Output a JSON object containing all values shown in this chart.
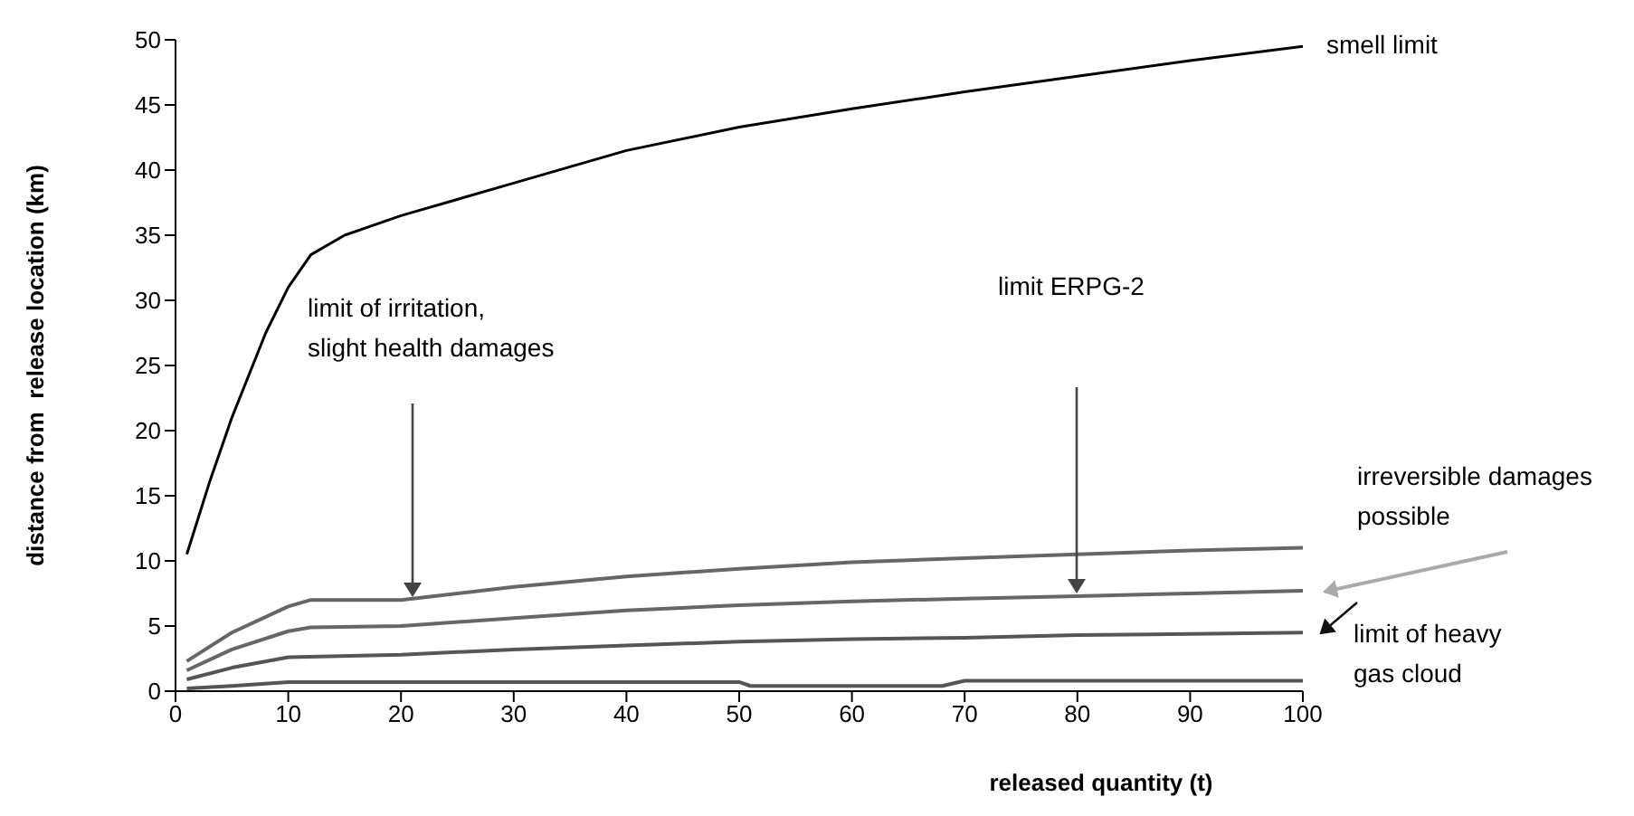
{
  "chart_data": {
    "type": "line",
    "xlabel": "released quantity (t)",
    "ylabel": "distance from  release location (km)",
    "xlim": [
      0,
      100
    ],
    "xticks": [
      0,
      10,
      20,
      30,
      40,
      50,
      60,
      70,
      80,
      90,
      100
    ],
    "ylim": [
      0,
      50
    ],
    "yticks": [
      0,
      5,
      10,
      15,
      20,
      25,
      30,
      35,
      40,
      45,
      50
    ],
    "grid": false,
    "legend": false,
    "marker": "none",
    "series": [
      {
        "color": "#000000",
        "x": [
          1,
          3,
          5,
          8,
          10,
          12,
          15,
          20,
          30,
          40,
          50,
          60,
          70,
          80,
          90,
          100
        ],
        "values": [
          10.5,
          16,
          21,
          27.5,
          31,
          33.5,
          35,
          36.5,
          39,
          41.5,
          43.3,
          44.7,
          46,
          47.2,
          48.4,
          49.5
        ]
      },
      {
        "color": "#666666",
        "x": [
          1,
          5,
          10,
          12,
          20,
          30,
          40,
          50,
          60,
          70,
          80,
          90,
          100
        ],
        "values": [
          2.3,
          4.5,
          6.5,
          7,
          7,
          8,
          8.8,
          9.4,
          9.9,
          10.2,
          10.5,
          10.8,
          11
        ]
      },
      {
        "color": "#666666",
        "x": [
          1,
          5,
          10,
          12,
          20,
          30,
          40,
          50,
          60,
          70,
          80,
          90,
          100
        ],
        "values": [
          1.6,
          3.2,
          4.6,
          4.9,
          5,
          5.6,
          6.2,
          6.6,
          6.9,
          7.1,
          7.3,
          7.5,
          7.7
        ]
      },
      {
        "color": "#555555",
        "x": [
          1,
          5,
          10,
          20,
          30,
          40,
          50,
          60,
          70,
          80,
          90,
          100
        ],
        "values": [
          0.9,
          1.8,
          2.6,
          2.8,
          3.2,
          3.5,
          3.8,
          4,
          4.1,
          4.3,
          4.4,
          4.5
        ]
      },
      {
        "color": "#555555",
        "x": [
          1,
          5,
          10,
          50,
          51,
          68,
          70,
          100
        ],
        "values": [
          0.2,
          0.4,
          0.7,
          0.7,
          0.4,
          0.4,
          0.8,
          0.8
        ]
      }
    ],
    "annotations": [
      {
        "text": "smell limit",
        "x": 100,
        "y": 49.5
      },
      "limit of irritation,\nslight health damages",
      "limit ERPG-2",
      "irreversible damages\npossible",
      "limit of  heavy\ngas cloud"
    ]
  }
}
